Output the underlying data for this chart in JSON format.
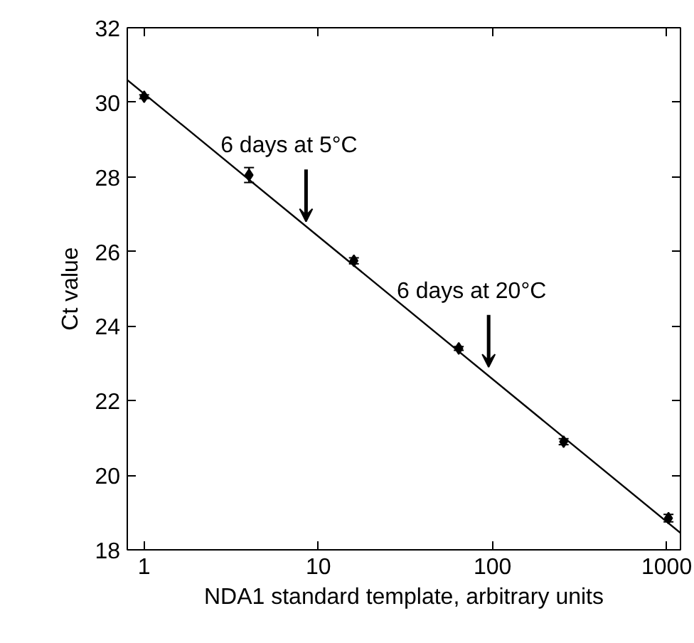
{
  "chart_data": {
    "type": "scatter",
    "xlabel": "NDA1 standard template, arbitrary units",
    "ylabel": "Ct value",
    "log": "x",
    "xlim": [
      0.8,
      1200
    ],
    "xticks": [
      1,
      10,
      100,
      1000
    ],
    "ylim": [
      18,
      32
    ],
    "yticks": [
      18,
      20,
      22,
      24,
      26,
      28,
      30,
      32
    ],
    "grid": false,
    "series": [
      {
        "marker": "diamond",
        "color": "#000000",
        "x": [
          1,
          4,
          16,
          64,
          256,
          1024
        ],
        "values": [
          30.15,
          28.05,
          25.75,
          23.4,
          20.9,
          18.85
        ],
        "errors": [
          0.05,
          0.2,
          0.08,
          0.05,
          0.08,
          0.1
        ]
      },
      {
        "type": "line",
        "color": "#000000",
        "x": [
          0.8,
          1200
        ],
        "values": [
          30.6,
          18.45
        ],
        "line_style": "solid"
      }
    ],
    "annotations": [
      {
        "text": "6 days at 5°C",
        "x": 8.5,
        "y": 26.8
      },
      {
        "text": "6 days at 20°C",
        "x": 95,
        "y": 22.9
      }
    ]
  }
}
